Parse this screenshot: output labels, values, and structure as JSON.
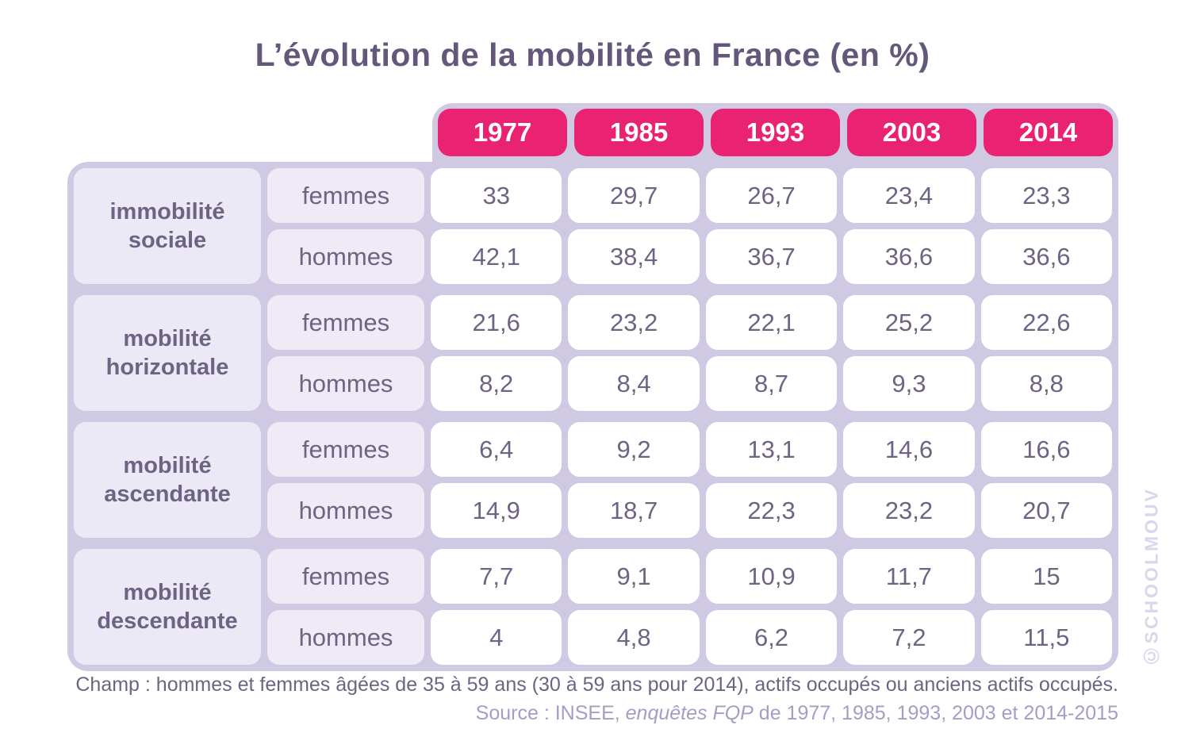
{
  "title": "L’évolution de la mobilité en France (en %)",
  "table": {
    "years": [
      "1977",
      "1985",
      "1993",
      "2003",
      "2014"
    ],
    "groups": [
      {
        "category": "immobilité sociale",
        "rows": [
          {
            "label": "femmes",
            "values": [
              "33",
              "29,7",
              "26,7",
              "23,4",
              "23,3"
            ]
          },
          {
            "label": "hommes",
            "values": [
              "42,1",
              "38,4",
              "36,7",
              "36,6",
              "36,6"
            ]
          }
        ]
      },
      {
        "category": "mobilité horizontale",
        "rows": [
          {
            "label": "femmes",
            "values": [
              "21,6",
              "23,2",
              "22,1",
              "25,2",
              "22,6"
            ]
          },
          {
            "label": "hommes",
            "values": [
              "8,2",
              "8,4",
              "8,7",
              "9,3",
              "8,8"
            ]
          }
        ]
      },
      {
        "category": "mobilité ascendante",
        "rows": [
          {
            "label": "femmes",
            "values": [
              "6,4",
              "9,2",
              "13,1",
              "14,6",
              "16,6"
            ]
          },
          {
            "label": "hommes",
            "values": [
              "14,9",
              "18,7",
              "22,3",
              "23,2",
              "20,7"
            ]
          }
        ]
      },
      {
        "category": "mobilité descendante",
        "rows": [
          {
            "label": "femmes",
            "values": [
              "7,7",
              "9,1",
              "10,9",
              "11,7",
              "15"
            ]
          },
          {
            "label": "hommes",
            "values": [
              "4",
              "4,8",
              "6,2",
              "7,2",
              "11,5"
            ]
          }
        ]
      }
    ]
  },
  "chart_data": {
    "type": "table",
    "title": "L’évolution de la mobilité en France (en %)",
    "columns": [
      "1977",
      "1985",
      "1993",
      "2003",
      "2014"
    ],
    "rows": [
      {
        "group": "immobilité sociale",
        "sex": "femmes",
        "values": [
          33,
          29.7,
          26.7,
          23.4,
          23.3
        ]
      },
      {
        "group": "immobilité sociale",
        "sex": "hommes",
        "values": [
          42.1,
          38.4,
          36.7,
          36.6,
          36.6
        ]
      },
      {
        "group": "mobilité horizontale",
        "sex": "femmes",
        "values": [
          21.6,
          23.2,
          22.1,
          25.2,
          22.6
        ]
      },
      {
        "group": "mobilité horizontale",
        "sex": "hommes",
        "values": [
          8.2,
          8.4,
          8.7,
          9.3,
          8.8
        ]
      },
      {
        "group": "mobilité ascendante",
        "sex": "femmes",
        "values": [
          6.4,
          9.2,
          13.1,
          14.6,
          16.6
        ]
      },
      {
        "group": "mobilité ascendante",
        "sex": "hommes",
        "values": [
          14.9,
          18.7,
          22.3,
          23.2,
          20.7
        ]
      },
      {
        "group": "mobilité descendante",
        "sex": "femmes",
        "values": [
          7.7,
          9.1,
          10.9,
          11.7,
          15
        ]
      },
      {
        "group": "mobilité descendante",
        "sex": "hommes",
        "values": [
          4,
          4.8,
          6.2,
          7.2,
          11.5
        ]
      }
    ]
  },
  "footer": {
    "champ": "Champ : hommes et femmes âgées de 35 à 59 ans (30 à 59 ans pour 2014), actifs occupés ou anciens actifs occupés.",
    "source_prefix": "Source : INSEE, ",
    "source_italic": "enquêtes FQP",
    "source_suffix": " de 1977, 1985, 1993, 2003 et 2014-2015"
  },
  "watermark": {
    "symbol": "©",
    "text": "SCHOOLMOUV"
  },
  "colors": {
    "accent_pink": "#e92372",
    "lavender_frame": "#cfc9e4",
    "light_cell": "#ece9f6",
    "text_purple": "#6f6384",
    "title_purple": "#63587a",
    "source_text": "#a59dc6",
    "watermark_text": "#dad6eb"
  }
}
